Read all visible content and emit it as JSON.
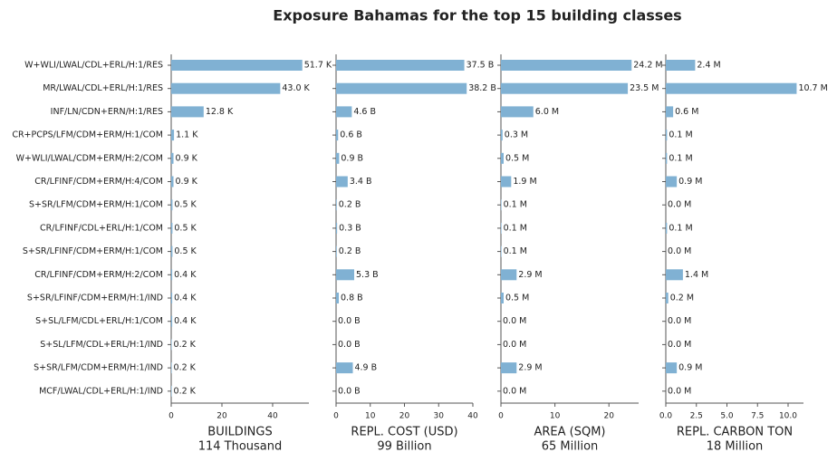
{
  "title": "Exposure Bahamas for the top 15 building classes",
  "chart_data": [
    {
      "type": "bar",
      "orientation": "horizontal",
      "color": "#80b1d3",
      "categories": [
        "W+WLI/LWAL/CDL+ERL/H:1/RES",
        "MR/LWAL/CDL+ERL/H:1/RES",
        "INF/LN/CDN+ERN/H:1/RES",
        "CR+PCPS/LFM/CDM+ERM/H:1/COM",
        "W+WLI/LWAL/CDM+ERM/H:2/COM",
        "CR/LFINF/CDM+ERM/H:4/COM",
        "S+SR/LFM/CDM+ERM/H:1/COM",
        "CR/LFINF/CDL+ERL/H:1/COM",
        "S+SR/LFINF/CDM+ERM/H:1/COM",
        "CR/LFINF/CDM+ERM/H:2/COM",
        "S+SR/LFINF/CDM+ERM/H:1/IND",
        "S+SL/LFM/CDL+ERL/H:1/COM",
        "S+SL/LFM/CDL+ERL/H:1/IND",
        "S+SR/LFM/CDM+ERM/H:1/IND",
        "MCF/LWAL/CDL+ERL/H:1/IND"
      ],
      "values": [
        51.7,
        43.0,
        12.8,
        1.1,
        0.9,
        0.9,
        0.5,
        0.5,
        0.5,
        0.4,
        0.4,
        0.4,
        0.2,
        0.2,
        0.2
      ],
      "value_labels": [
        "51.7 K",
        "43.0 K",
        "12.8 K",
        "1.1 K",
        "0.9 K",
        "0.9 K",
        "0.5 K",
        "0.5 K",
        "0.5 K",
        "0.4 K",
        "0.4 K",
        "0.4 K",
        "0.2 K",
        "0.2 K",
        "0.2 K"
      ],
      "xlim": [
        0,
        54.3
      ],
      "xticks": [
        0,
        20,
        40
      ],
      "xlabel": "BUILDINGS",
      "total": "114 Thousand"
    },
    {
      "type": "bar",
      "orientation": "horizontal",
      "color": "#80b1d3",
      "values": [
        37.5,
        38.2,
        4.6,
        0.6,
        0.9,
        3.4,
        0.2,
        0.3,
        0.2,
        5.3,
        0.8,
        0.0,
        0.0,
        4.9,
        0.0
      ],
      "value_labels": [
        "37.5 B",
        "38.2 B",
        "4.6 B",
        "0.6 B",
        "0.9 B",
        "3.4 B",
        "0.2 B",
        "0.3 B",
        "0.2 B",
        "5.3 B",
        "0.8 B",
        "0.0 B",
        "0.0 B",
        "4.9 B",
        "0.0 B"
      ],
      "xlim": [
        0,
        40
      ],
      "xticks": [
        0,
        10,
        20,
        30,
        40
      ],
      "xlabel": "REPL. COST (USD)",
      "total": "99 Billion"
    },
    {
      "type": "bar",
      "orientation": "horizontal",
      "color": "#80b1d3",
      "values": [
        24.2,
        23.5,
        6.0,
        0.3,
        0.5,
        1.9,
        0.1,
        0.1,
        0.1,
        2.9,
        0.5,
        0.0,
        0.0,
        2.9,
        0.0
      ],
      "value_labels": [
        "24.2 M",
        "23.5 M",
        "6.0 M",
        "0.3 M",
        "0.5 M",
        "1.9 M",
        "0.1 M",
        "0.1 M",
        "0.1 M",
        "2.9 M",
        "0.5 M",
        "0.0 M",
        "0.0 M",
        "2.9 M",
        "0.0 M"
      ],
      "xlim": [
        0,
        25.5
      ],
      "xticks": [
        0,
        10,
        20
      ],
      "xlabel": "AREA (SQM)",
      "total": "65 Million"
    },
    {
      "type": "bar",
      "orientation": "horizontal",
      "color": "#80b1d3",
      "values": [
        2.4,
        10.7,
        0.6,
        0.1,
        0.1,
        0.9,
        0.0,
        0.1,
        0.0,
        1.4,
        0.2,
        0.0,
        0.0,
        0.9,
        0.0
      ],
      "value_labels": [
        "2.4 M",
        "10.7 M",
        "0.6 M",
        "0.1 M",
        "0.1 M",
        "0.9 M",
        "0.0 M",
        "0.1 M",
        "0.0 M",
        "1.4 M",
        "0.2 M",
        "0.0 M",
        "0.0 M",
        "0.9 M",
        "0.0 M"
      ],
      "xlim": [
        0,
        11.26
      ],
      "xticks": [
        {
          "value": 0,
          "label": "0.0"
        },
        2.5,
        {
          "value": 5,
          "label": "5.0"
        },
        7.5,
        {
          "value": 10,
          "label": "10.0"
        }
      ],
      "xlabel": "REPL. CARBON TON",
      "total": "18 Million"
    }
  ]
}
